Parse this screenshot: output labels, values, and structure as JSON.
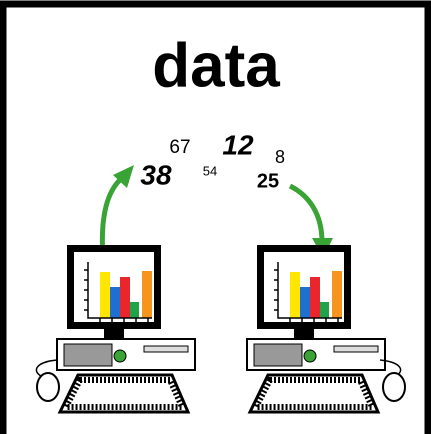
{
  "title": "data",
  "numbers": [
    "67",
    "12",
    "8",
    "38",
    "54",
    "25"
  ]
}
